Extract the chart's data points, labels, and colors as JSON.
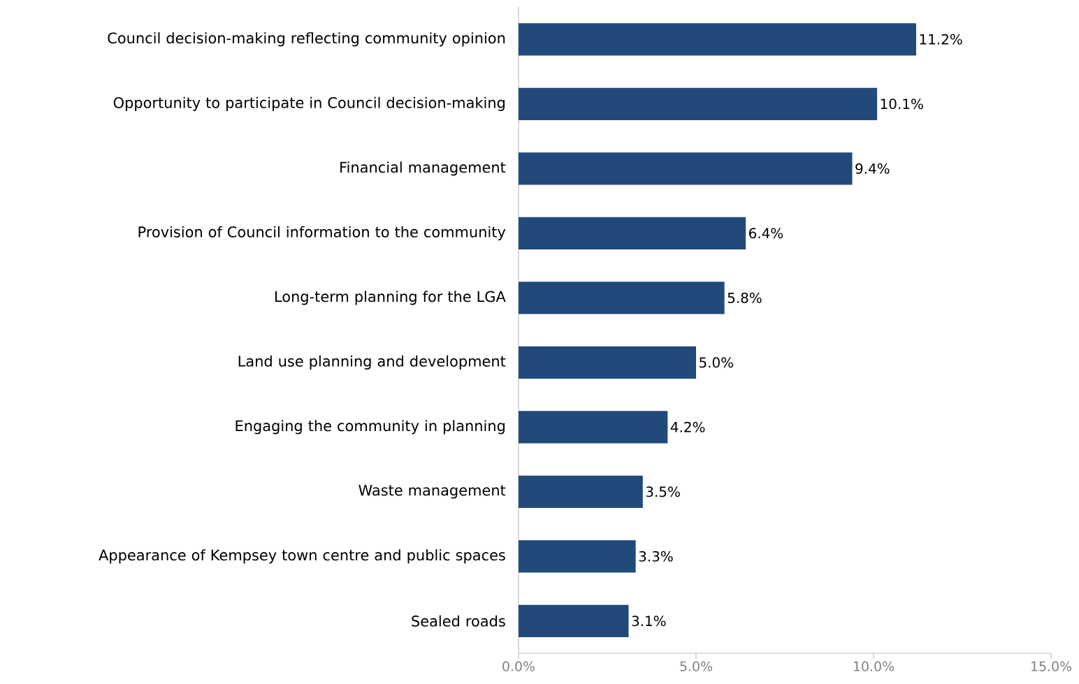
{
  "chart_data": {
    "type": "bar",
    "orientation": "horizontal",
    "color": "#214a7b",
    "categories": [
      "Council decision-making reflecting community opinion",
      "Opportunity to participate in Council decision-making",
      "Financial management",
      "Provision of Council information to the community",
      "Long-term planning for the LGA",
      "Land use planning and development",
      "Engaging the community in planning",
      "Waste management",
      "Appearance of Kempsey town centre and public spaces",
      "Sealed roads"
    ],
    "values": [
      11.2,
      10.1,
      9.4,
      6.4,
      5.8,
      5.0,
      4.2,
      3.5,
      3.3,
      3.1
    ],
    "value_labels": [
      "11.2%",
      "10.1%",
      "9.4%",
      "6.4%",
      "5.8%",
      "5.0%",
      "4.2%",
      "3.5%",
      "3.3%",
      "3.1%"
    ],
    "xlim": [
      0,
      15
    ],
    "xticks": [
      {
        "value": 0,
        "label": "0.0%"
      },
      {
        "value": 5,
        "label": "5.0%"
      },
      {
        "value": 10,
        "label": "10.0%"
      },
      {
        "value": 15,
        "label": "15.0%"
      }
    ]
  }
}
